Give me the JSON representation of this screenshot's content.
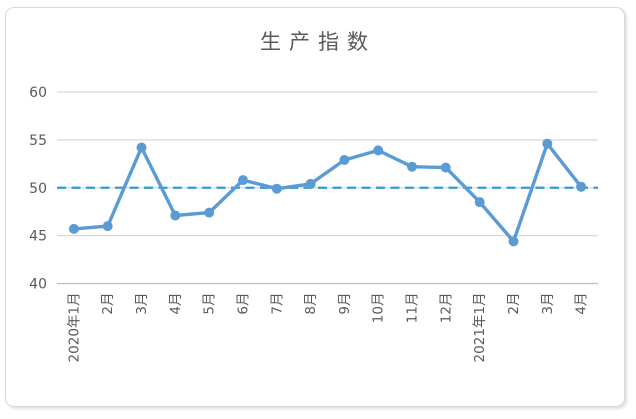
{
  "chart_data": {
    "type": "line",
    "title": "生产指数",
    "categories": [
      "2020年1月",
      "2月",
      "3月",
      "4月",
      "5月",
      "6月",
      "7月",
      "8月",
      "9月",
      "10月",
      "11月",
      "12月",
      "2021年1月",
      "2月",
      "3月",
      "4月"
    ],
    "series": [
      {
        "name": "生产指数",
        "values": [
          45.7,
          46.0,
          54.2,
          47.1,
          47.4,
          50.8,
          49.9,
          50.4,
          52.9,
          53.9,
          52.2,
          52.1,
          48.5,
          44.4,
          54.6,
          50.1
        ]
      }
    ],
    "reference_line": {
      "value": 50,
      "style": "dashed"
    },
    "xlabel": "",
    "ylabel": "",
    "ylim": [
      40,
      60
    ],
    "yticks": [
      40,
      45,
      50,
      55,
      60
    ],
    "grid": "horizontal-only",
    "legend": "none",
    "x_tick_rotation_deg": 90
  },
  "colors": {
    "series_line": "#5b9bd5",
    "marker_fill": "#5b9bd5",
    "reference_line": "#2e9bd9",
    "gridline": "#d9d9d9",
    "axis_line": "#bfbfbf",
    "axis_text": "#595959",
    "title_text": "#595959",
    "frame_border": "#d8d8d8",
    "background": "#ffffff"
  },
  "layout_values": {
    "y_tick_font_px": "14",
    "x_tick_font_px": "13.5"
  }
}
